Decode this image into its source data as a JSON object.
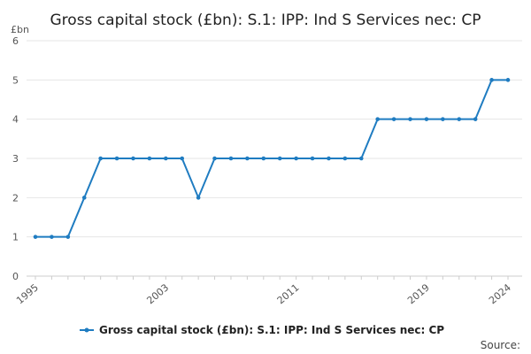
{
  "chart_data": {
    "type": "line",
    "title": "Gross capital stock (£bn): S.1: IPP: Ind S Services nec: CP",
    "ylabel": "£bn",
    "xlabel": "",
    "x": [
      1995,
      1996,
      1997,
      1998,
      1999,
      2000,
      2001,
      2002,
      2003,
      2004,
      2005,
      2006,
      2007,
      2008,
      2009,
      2010,
      2011,
      2012,
      2013,
      2014,
      2015,
      2016,
      2017,
      2018,
      2019,
      2020,
      2021,
      2022,
      2023,
      2024
    ],
    "series": [
      {
        "name": "Gross capital stock (£bn): S.1: IPP: Ind S Services nec: CP",
        "color": "#1f7cc1",
        "values": [
          1,
          1,
          1,
          2,
          3,
          3,
          3,
          3,
          3,
          3,
          2,
          3,
          3,
          3,
          3,
          3,
          3,
          3,
          3,
          3,
          3,
          4,
          4,
          4,
          4,
          4,
          4,
          4,
          5,
          5
        ]
      }
    ],
    "xticks": [
      "1995",
      "2003",
      "2011",
      "2019",
      "2024"
    ],
    "yticks": [
      "0",
      "1",
      "2",
      "3",
      "4",
      "5",
      "6"
    ],
    "xlim": [
      1995,
      2024
    ],
    "ylim": [
      0,
      6
    ],
    "grid": true,
    "legend_position": "bottom",
    "source": "Source:"
  }
}
